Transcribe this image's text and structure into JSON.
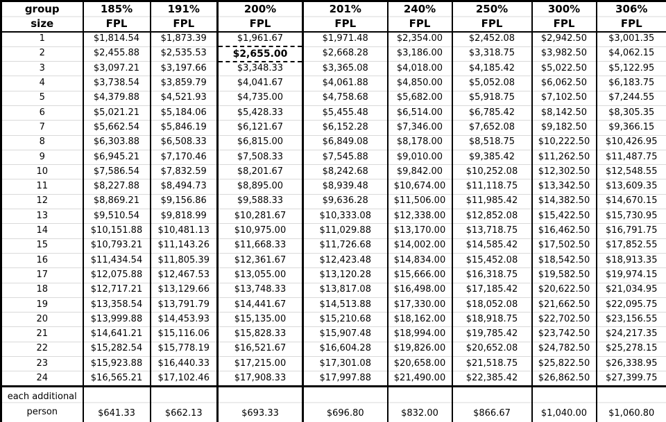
{
  "colors": {
    "border": "#000000",
    "gridline": "#d9d9d9",
    "background": "#ffffff",
    "text": "#000000"
  },
  "table": {
    "corner_header": {
      "line1": "group",
      "line2": "size"
    },
    "columns": [
      {
        "percent": "185%",
        "unit": "FPL"
      },
      {
        "percent": "191%",
        "unit": "FPL"
      },
      {
        "percent": "200%",
        "unit": "FPL"
      },
      {
        "percent": "201%",
        "unit": "FPL"
      },
      {
        "percent": "240%",
        "unit": "FPL"
      },
      {
        "percent": "250%",
        "unit": "FPL"
      },
      {
        "percent": "300%",
        "unit": "FPL"
      },
      {
        "percent": "306%",
        "unit": "FPL"
      }
    ],
    "selection": {
      "group_size": "2",
      "column_percent": "200%",
      "value": "$2,655.00"
    },
    "rows": [
      {
        "size": "1",
        "values": [
          "$1,814.54",
          "$1,873.39",
          "$1,961.67",
          "$1,971.48",
          "$2,354.00",
          "$2,452.08",
          "$2,942.50",
          "$3,001.35"
        ]
      },
      {
        "size": "2",
        "values": [
          "$2,455.88",
          "$2,535.53",
          "$2,655.00",
          "$2,668.28",
          "$3,186.00",
          "$3,318.75",
          "$3,982.50",
          "$4,062.15"
        ]
      },
      {
        "size": "3",
        "values": [
          "$3,097.21",
          "$3,197.66",
          "$3,348.33",
          "$3,365.08",
          "$4,018.00",
          "$4,185.42",
          "$5,022.50",
          "$5,122.95"
        ]
      },
      {
        "size": "4",
        "values": [
          "$3,738.54",
          "$3,859.79",
          "$4,041.67",
          "$4,061.88",
          "$4,850.00",
          "$5,052.08",
          "$6,062.50",
          "$6,183.75"
        ]
      },
      {
        "size": "5",
        "values": [
          "$4,379.88",
          "$4,521.93",
          "$4,735.00",
          "$4,758.68",
          "$5,682.00",
          "$5,918.75",
          "$7,102.50",
          "$7,244.55"
        ]
      },
      {
        "size": "6",
        "values": [
          "$5,021.21",
          "$5,184.06",
          "$5,428.33",
          "$5,455.48",
          "$6,514.00",
          "$6,785.42",
          "$8,142.50",
          "$8,305.35"
        ]
      },
      {
        "size": "7",
        "values": [
          "$5,662.54",
          "$5,846.19",
          "$6,121.67",
          "$6,152.28",
          "$7,346.00",
          "$7,652.08",
          "$9,182.50",
          "$9,366.15"
        ]
      },
      {
        "size": "8",
        "values": [
          "$6,303.88",
          "$6,508.33",
          "$6,815.00",
          "$6,849.08",
          "$8,178.00",
          "$8,518.75",
          "$10,222.50",
          "$10,426.95"
        ]
      },
      {
        "size": "9",
        "values": [
          "$6,945.21",
          "$7,170.46",
          "$7,508.33",
          "$7,545.88",
          "$9,010.00",
          "$9,385.42",
          "$11,262.50",
          "$11,487.75"
        ]
      },
      {
        "size": "10",
        "values": [
          "$7,586.54",
          "$7,832.59",
          "$8,201.67",
          "$8,242.68",
          "$9,842.00",
          "$10,252.08",
          "$12,302.50",
          "$12,548.55"
        ]
      },
      {
        "size": "11",
        "values": [
          "$8,227.88",
          "$8,494.73",
          "$8,895.00",
          "$8,939.48",
          "$10,674.00",
          "$11,118.75",
          "$13,342.50",
          "$13,609.35"
        ]
      },
      {
        "size": "12",
        "values": [
          "$8,869.21",
          "$9,156.86",
          "$9,588.33",
          "$9,636.28",
          "$11,506.00",
          "$11,985.42",
          "$14,382.50",
          "$14,670.15"
        ]
      },
      {
        "size": "13",
        "values": [
          "$9,510.54",
          "$9,818.99",
          "$10,281.67",
          "$10,333.08",
          "$12,338.00",
          "$12,852.08",
          "$15,422.50",
          "$15,730.95"
        ]
      },
      {
        "size": "14",
        "values": [
          "$10,151.88",
          "$10,481.13",
          "$10,975.00",
          "$11,029.88",
          "$13,170.00",
          "$13,718.75",
          "$16,462.50",
          "$16,791.75"
        ]
      },
      {
        "size": "15",
        "values": [
          "$10,793.21",
          "$11,143.26",
          "$11,668.33",
          "$11,726.68",
          "$14,002.00",
          "$14,585.42",
          "$17,502.50",
          "$17,852.55"
        ]
      },
      {
        "size": "16",
        "values": [
          "$11,434.54",
          "$11,805.39",
          "$12,361.67",
          "$12,423.48",
          "$14,834.00",
          "$15,452.08",
          "$18,542.50",
          "$18,913.35"
        ]
      },
      {
        "size": "17",
        "values": [
          "$12,075.88",
          "$12,467.53",
          "$13,055.00",
          "$13,120.28",
          "$15,666.00",
          "$16,318.75",
          "$19,582.50",
          "$19,974.15"
        ]
      },
      {
        "size": "18",
        "values": [
          "$12,717.21",
          "$13,129.66",
          "$13,748.33",
          "$13,817.08",
          "$16,498.00",
          "$17,185.42",
          "$20,622.50",
          "$21,034.95"
        ]
      },
      {
        "size": "19",
        "values": [
          "$13,358.54",
          "$13,791.79",
          "$14,441.67",
          "$14,513.88",
          "$17,330.00",
          "$18,052.08",
          "$21,662.50",
          "$22,095.75"
        ]
      },
      {
        "size": "20",
        "values": [
          "$13,999.88",
          "$14,453.93",
          "$15,135.00",
          "$15,210.68",
          "$18,162.00",
          "$18,918.75",
          "$22,702.50",
          "$23,156.55"
        ]
      },
      {
        "size": "21",
        "values": [
          "$14,641.21",
          "$15,116.06",
          "$15,828.33",
          "$15,907.48",
          "$18,994.00",
          "$19,785.42",
          "$23,742.50",
          "$24,217.35"
        ]
      },
      {
        "size": "22",
        "values": [
          "$15,282.54",
          "$15,778.19",
          "$16,521.67",
          "$16,604.28",
          "$19,826.00",
          "$20,652.08",
          "$24,782.50",
          "$25,278.15"
        ]
      },
      {
        "size": "23",
        "values": [
          "$15,923.88",
          "$16,440.33",
          "$17,215.00",
          "$17,301.08",
          "$20,658.00",
          "$21,518.75",
          "$25,822.50",
          "$26,338.95"
        ]
      },
      {
        "size": "24",
        "values": [
          "$16,565.21",
          "$17,102.46",
          "$17,908.33",
          "$17,997.88",
          "$21,490.00",
          "$22,385.42",
          "$26,862.50",
          "$27,399.75"
        ]
      }
    ],
    "footer": {
      "label_line1": "each additional",
      "label_line2": "person",
      "values": [
        "$641.33",
        "$662.13",
        "$693.33",
        "$696.80",
        "$832.00",
        "$866.67",
        "$1,040.00",
        "$1,060.80"
      ]
    }
  }
}
